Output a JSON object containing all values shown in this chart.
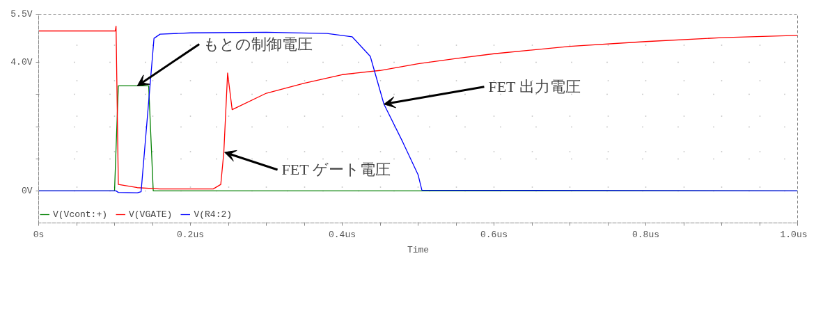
{
  "chart_data": {
    "type": "line",
    "xlabel": "Time",
    "grid": true,
    "legend": "bottom left",
    "line_style": "solid",
    "xlim": [
      0,
      1.0
    ],
    "ylim": [
      -1.0,
      5.5
    ],
    "xticks": [
      {
        "value": 0,
        "label": "0s"
      },
      {
        "value": 0.05,
        "label": null
      },
      {
        "value": 0.1,
        "label": null
      },
      {
        "value": 0.15,
        "label": null
      },
      {
        "value": 0.2,
        "label": "0.2us"
      },
      {
        "value": 0.25,
        "label": null
      },
      {
        "value": 0.3,
        "label": null
      },
      {
        "value": 0.35,
        "label": null
      },
      {
        "value": 0.4,
        "label": "0.4us"
      },
      {
        "value": 0.45,
        "label": null
      },
      {
        "value": 0.5,
        "label": null
      },
      {
        "value": 0.55,
        "label": null
      },
      {
        "value": 0.6,
        "label": "0.6us"
      },
      {
        "value": 0.65,
        "label": null
      },
      {
        "value": 0.7,
        "label": null
      },
      {
        "value": 0.75,
        "label": null
      },
      {
        "value": 0.8,
        "label": "0.8us"
      },
      {
        "value": 0.85,
        "label": null
      },
      {
        "value": 0.9,
        "label": null
      },
      {
        "value": 0.95,
        "label": null
      },
      {
        "value": 1.0,
        "label": "1.0us"
      }
    ],
    "yticks": [
      {
        "value": 0,
        "label": "0V"
      },
      {
        "value": 1,
        "label": null
      },
      {
        "value": 2,
        "label": null
      },
      {
        "value": 3,
        "label": null
      },
      {
        "value": 4,
        "label": "4.0V"
      },
      {
        "value": 5.5,
        "label": "5.5V"
      }
    ],
    "series": [
      {
        "name": "V(Vcont:+)",
        "color": "#008000",
        "x": [
          0,
          0.1,
          0.105,
          0.145,
          0.151,
          1.0
        ],
        "values": [
          0,
          0,
          3.27,
          3.27,
          0,
          0
        ]
      },
      {
        "name": "V(VGATE)",
        "color": "#ff0000",
        "x": [
          0,
          0.101,
          0.102,
          0.103,
          0.105,
          0.13,
          0.16,
          0.23,
          0.24,
          0.244,
          0.249,
          0.255,
          0.3,
          0.35,
          0.4,
          0.45,
          0.5,
          0.55,
          0.6,
          0.7,
          0.8,
          0.9,
          1.0
        ],
        "values": [
          4.98,
          4.98,
          5.13,
          3.5,
          0.2,
          0.1,
          0.06,
          0.06,
          0.2,
          1.2,
          3.67,
          2.53,
          3.04,
          3.35,
          3.62,
          3.75,
          3.96,
          4.12,
          4.27,
          4.5,
          4.65,
          4.77,
          4.84
        ]
      },
      {
        "name": "V(R4:2)",
        "color": "#0000ff",
        "x": [
          0,
          0.102,
          0.105,
          0.13,
          0.135,
          0.152,
          0.16,
          0.2,
          0.3,
          0.38,
          0.413,
          0.437,
          0.455,
          0.48,
          0.5,
          0.505,
          1.0
        ],
        "values": [
          0,
          0,
          -0.05,
          -0.06,
          -0.03,
          4.75,
          4.88,
          4.92,
          4.94,
          4.9,
          4.8,
          4.19,
          2.7,
          1.51,
          0.5,
          0.02,
          0
        ]
      }
    ],
    "annotations": [
      {
        "text": "もとの制御電圧",
        "x": 0.13,
        "y": 3.27
      },
      {
        "text": "FET 出力電圧",
        "x": 0.455,
        "y": 2.7
      },
      {
        "text": "FET ゲート電圧",
        "x": 0.245,
        "y": 1.2
      }
    ]
  }
}
